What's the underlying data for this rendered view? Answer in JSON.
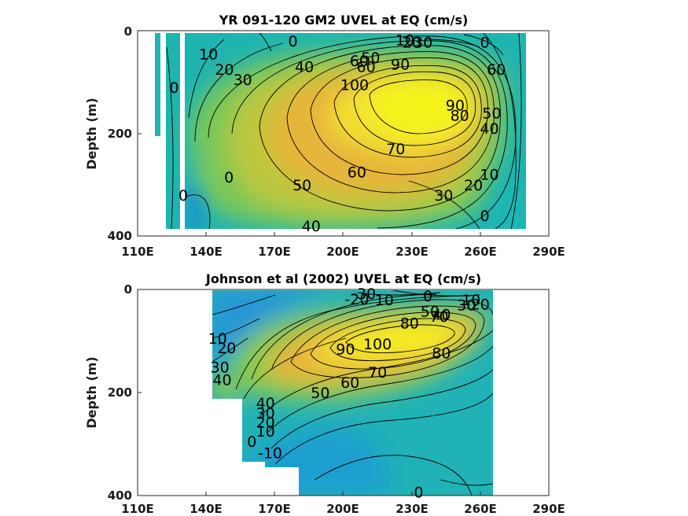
{
  "chart_data": [
    {
      "type": "contour",
      "title": "YR 091-120 GM2 UVEL at EQ (cm/s)",
      "xlabel": "",
      "ylabel": "Depth (m)",
      "xticks": [
        "110E",
        "140E",
        "170E",
        "200E",
        "230E",
        "260E",
        "290E"
      ],
      "yticks": [
        "0",
        "200",
        "400"
      ],
      "xlim": [
        110,
        290
      ],
      "ylim": [
        400,
        0
      ],
      "core": {
        "lon": 230,
        "depth": 120,
        "max_value": 100
      },
      "contour_labels": [
        "0",
        "10",
        "20",
        "30",
        "30",
        "40",
        "50",
        "60",
        "70",
        "80",
        "90",
        "100",
        "60",
        "50",
        "90",
        "80",
        "60",
        "50",
        "40",
        "70",
        "60",
        "50",
        "40",
        "30",
        "20",
        "10",
        "0",
        "0",
        "0",
        "0"
      ],
      "labels": [
        {
          "text": "0",
          "lon": 178,
          "depth": 20
        },
        {
          "text": "10",
          "lon": 227,
          "depth": 18
        },
        {
          "text": "20",
          "lon": 230,
          "depth": 22
        },
        {
          "text": "30",
          "lon": 235,
          "depth": 22
        },
        {
          "text": "0",
          "lon": 262,
          "depth": 22
        },
        {
          "text": "10",
          "lon": 141,
          "depth": 45
        },
        {
          "text": "20",
          "lon": 148,
          "depth": 75
        },
        {
          "text": "30",
          "lon": 156,
          "depth": 95
        },
        {
          "text": "40",
          "lon": 183,
          "depth": 70
        },
        {
          "text": "60",
          "lon": 207,
          "depth": 58
        },
        {
          "text": "50",
          "lon": 212,
          "depth": 52
        },
        {
          "text": "60",
          "lon": 210,
          "depth": 70
        },
        {
          "text": "90",
          "lon": 225,
          "depth": 65
        },
        {
          "text": "100",
          "lon": 205,
          "depth": 105
        },
        {
          "text": "60",
          "lon": 267,
          "depth": 75
        },
        {
          "text": "0",
          "lon": 126,
          "depth": 110
        },
        {
          "text": "90",
          "lon": 249,
          "depth": 145
        },
        {
          "text": "80",
          "lon": 251,
          "depth": 165
        },
        {
          "text": "50",
          "lon": 265,
          "depth": 160
        },
        {
          "text": "40",
          "lon": 264,
          "depth": 190
        },
        {
          "text": "70",
          "lon": 223,
          "depth": 230
        },
        {
          "text": "60",
          "lon": 206,
          "depth": 275
        },
        {
          "text": "0",
          "lon": 150,
          "depth": 285
        },
        {
          "text": "50",
          "lon": 182,
          "depth": 300
        },
        {
          "text": "30",
          "lon": 244,
          "depth": 320
        },
        {
          "text": "20",
          "lon": 257,
          "depth": 300
        },
        {
          "text": "10",
          "lon": 264,
          "depth": 280
        },
        {
          "text": "0",
          "lon": 130,
          "depth": 320
        },
        {
          "text": "0",
          "lon": 262,
          "depth": 360
        },
        {
          "text": "40",
          "lon": 186,
          "depth": 380
        }
      ]
    },
    {
      "type": "contour",
      "title": "Johnson et al (2002) UVEL at EQ (cm/s)",
      "xlabel": "",
      "ylabel": "Depth (m)",
      "xticks": [
        "110E",
        "140E",
        "170E",
        "200E",
        "230E",
        "260E",
        "290E"
      ],
      "yticks": [
        "0",
        "200",
        "400"
      ],
      "xlim": [
        110,
        290
      ],
      "ylim": [
        400,
        0
      ],
      "core": {
        "lon": 218,
        "depth": 110,
        "max_value": 100
      },
      "contour_labels": [
        "-30",
        "-20",
        "10",
        "0",
        "10",
        "20",
        "30",
        "50",
        "40",
        "70",
        "80",
        "10",
        "20",
        "30",
        "40",
        "90",
        "100",
        "80",
        "70",
        "60",
        "50",
        "40",
        "30",
        "20",
        "10",
        "0",
        "-10",
        "0"
      ],
      "labels": [
        {
          "text": "-30",
          "lon": 209,
          "depth": 8
        },
        {
          "text": "-20",
          "lon": 206,
          "depth": 18
        },
        {
          "text": "10",
          "lon": 218,
          "depth": 20
        },
        {
          "text": "0",
          "lon": 237,
          "depth": 12
        },
        {
          "text": "10",
          "lon": 256,
          "depth": 20
        },
        {
          "text": "20",
          "lon": 260,
          "depth": 28
        },
        {
          "text": "30",
          "lon": 254,
          "depth": 30
        },
        {
          "text": "50",
          "lon": 238,
          "depth": 42
        },
        {
          "text": "40",
          "lon": 243,
          "depth": 48
        },
        {
          "text": "70",
          "lon": 242,
          "depth": 52
        },
        {
          "text": "80",
          "lon": 229,
          "depth": 65
        },
        {
          "text": "10",
          "lon": 145,
          "depth": 95
        },
        {
          "text": "20",
          "lon": 149,
          "depth": 113
        },
        {
          "text": "30",
          "lon": 146,
          "depth": 150
        },
        {
          "text": "40",
          "lon": 147,
          "depth": 175
        },
        {
          "text": "90",
          "lon": 201,
          "depth": 115
        },
        {
          "text": "100",
          "lon": 215,
          "depth": 105
        },
        {
          "text": "80",
          "lon": 243,
          "depth": 123
        },
        {
          "text": "70",
          "lon": 215,
          "depth": 160
        },
        {
          "text": "60",
          "lon": 203,
          "depth": 180
        },
        {
          "text": "50",
          "lon": 190,
          "depth": 200
        },
        {
          "text": "40",
          "lon": 166,
          "depth": 220
        },
        {
          "text": "30",
          "lon": 166,
          "depth": 240
        },
        {
          "text": "20",
          "lon": 166,
          "depth": 257
        },
        {
          "text": "10",
          "lon": 166,
          "depth": 275
        },
        {
          "text": "0",
          "lon": 160,
          "depth": 295
        },
        {
          "text": "-10",
          "lon": 168,
          "depth": 317
        },
        {
          "text": "0",
          "lon": 233,
          "depth": 393
        }
      ]
    }
  ]
}
